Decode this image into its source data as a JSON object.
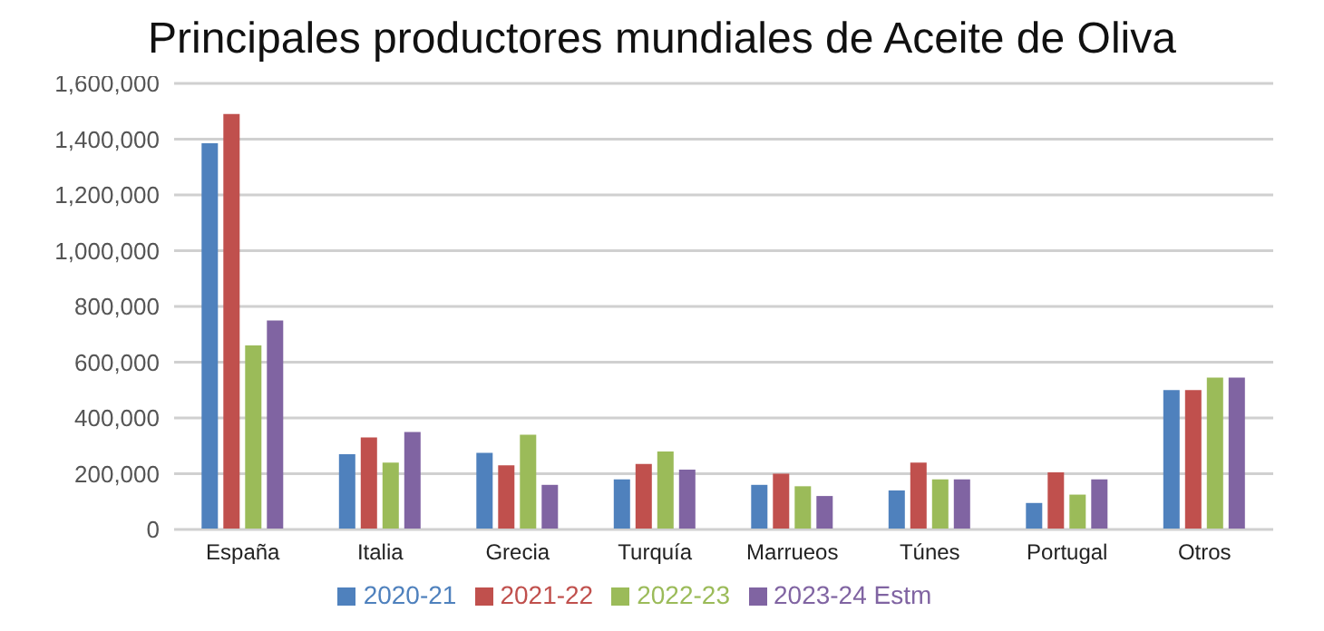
{
  "chart_data": {
    "type": "bar",
    "title": "Principales productores mundiales de Aceite de Oliva",
    "categories": [
      "España",
      "Italia",
      "Grecia",
      "Turquía",
      "Marrueos",
      "Túnes",
      "Portugal",
      "Otros"
    ],
    "series": [
      {
        "name": "2020-21",
        "color": "#4f81bd",
        "values": [
          1385000,
          270000,
          275000,
          180000,
          160000,
          140000,
          95000,
          500000
        ]
      },
      {
        "name": "2021-22",
        "color": "#c0504d",
        "values": [
          1490000,
          330000,
          230000,
          235000,
          200000,
          240000,
          205000,
          500000
        ]
      },
      {
        "name": "2022-23",
        "color": "#9bbb59",
        "values": [
          660000,
          240000,
          340000,
          280000,
          155000,
          180000,
          125000,
          545000
        ]
      },
      {
        "name": "2023-24 Estm",
        "color": "#8064a2",
        "values": [
          750000,
          350000,
          160000,
          215000,
          120000,
          180000,
          180000,
          545000
        ]
      }
    ],
    "ylim": [
      0,
      1600000
    ],
    "yticks": [
      0,
      {
        "value": 200000,
        "label": "200,000"
      },
      {
        "value": 400000,
        "label": "400,000"
      },
      {
        "value": 600000,
        "label": "600,000"
      },
      {
        "value": 800000,
        "label": "800,000"
      },
      {
        "value": 1000000,
        "label": "1,000,000"
      },
      {
        "value": 1200000,
        "label": "1,200,000"
      },
      {
        "value": 1400000,
        "label": "1,400,000"
      },
      {
        "value": 1600000,
        "label": "1,600,000"
      }
    ],
    "grid": "y",
    "legend": "bottom"
  }
}
